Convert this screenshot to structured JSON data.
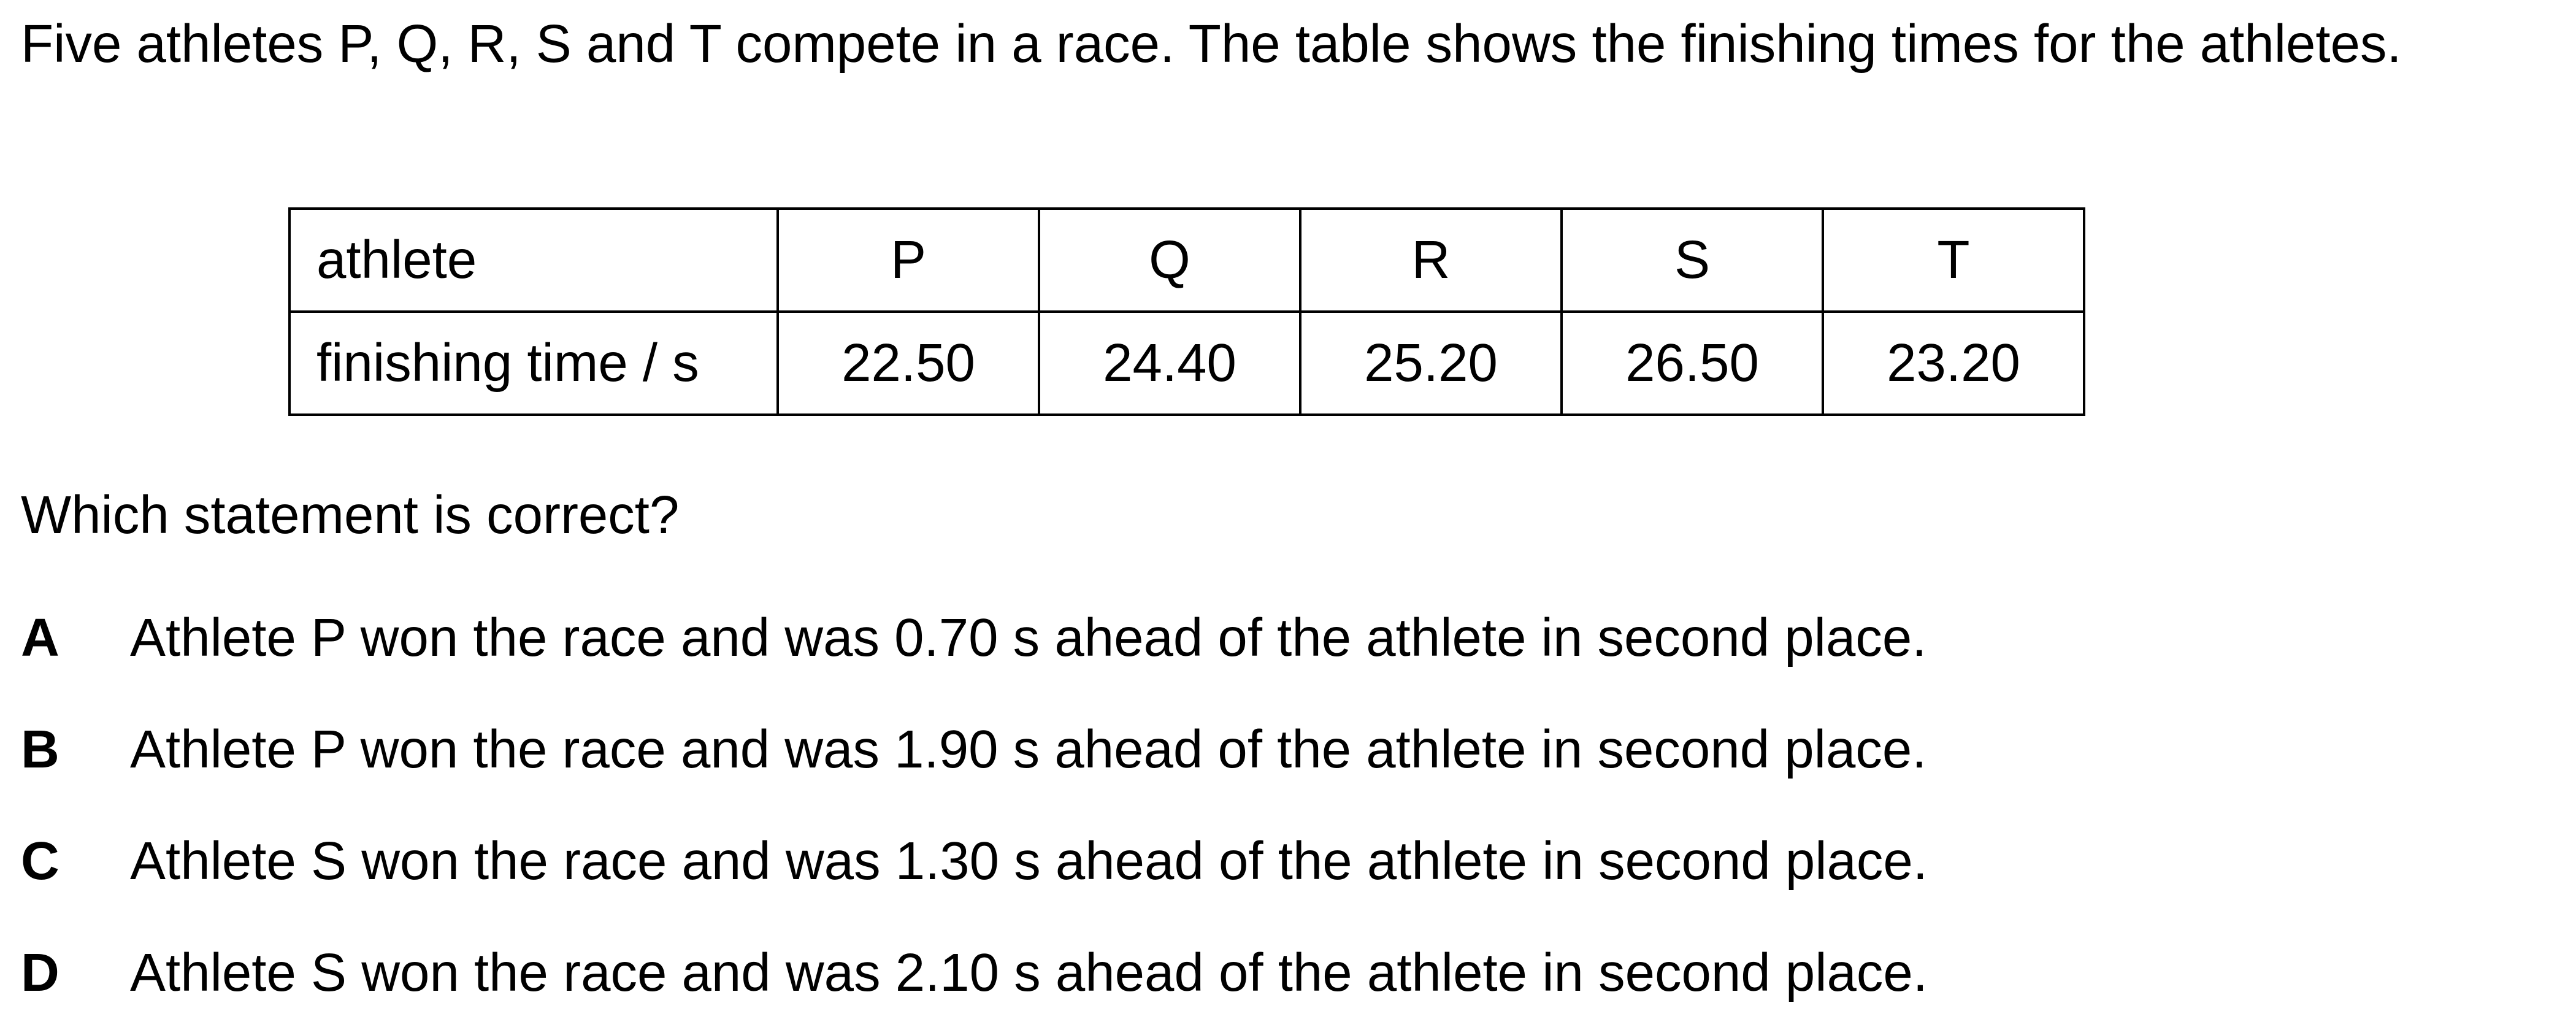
{
  "intro_text": "Five athletes P, Q, R, S and T compete in a race. The table shows the finishing times for the athletes.",
  "table": {
    "row_headers": [
      "athlete",
      "finishing time / s"
    ],
    "athletes": [
      "P",
      "Q",
      "R",
      "S",
      "T"
    ],
    "times": [
      "22.50",
      "24.40",
      "25.20",
      "26.50",
      "23.20"
    ]
  },
  "question": "Which statement is correct?",
  "options": [
    {
      "letter": "A",
      "text": "Athlete P won the race and was 0.70 s ahead of the athlete in second place."
    },
    {
      "letter": "B",
      "text": "Athlete P won the race and was 1.90 s ahead of the athlete in second place."
    },
    {
      "letter": "C",
      "text": "Athlete S won the race and was 1.30 s ahead of the athlete in second place."
    },
    {
      "letter": "D",
      "text": "Athlete S won the race and was 2.10 s ahead of the athlete in second place."
    }
  ]
}
